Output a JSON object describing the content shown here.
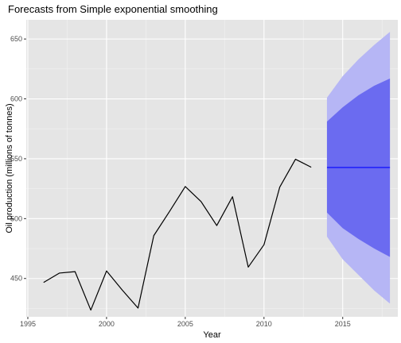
{
  "chart_data": {
    "type": "line",
    "title": "Forecasts from Simple exponential smoothing",
    "xlabel": "Year",
    "ylabel": "Oil production (millions of tonnes)",
    "xlim": [
      1994.9,
      2018.5
    ],
    "ylim": [
      418,
      666
    ],
    "x_ticks": [
      1995,
      2000,
      2005,
      2010,
      2015
    ],
    "y_ticks": [
      450,
      500,
      550,
      600,
      650
    ],
    "x_tick_labels": [
      "1995",
      "2000",
      "2005",
      "2010",
      "2015"
    ],
    "y_tick_labels": [
      "450",
      "500",
      "550",
      "600",
      "650"
    ],
    "grid": true,
    "series": [
      {
        "x": [
          1996,
          1997,
          1998,
          1999,
          2000,
          2001,
          2002,
          2003,
          2004,
          2005,
          2006,
          2007,
          2008,
          2009,
          2010,
          2011,
          2012,
          2013
        ],
        "values": [
          446.7,
          454.5,
          455.7,
          423.6,
          456.3,
          440.3,
          425.3,
          485.8,
          506.0,
          526.8,
          514.3,
          494.2,
          518.3,
          459.5,
          478.2,
          526.3,
          549.6,
          542.9
        ]
      },
      {
        "x": [
          2014,
          2015,
          2016,
          2017,
          2018
        ],
        "values": [
          542.7,
          542.7,
          542.7,
          542.7,
          542.7
        ]
      }
    ],
    "intervals": [
      {
        "level": "95%",
        "x": [
          2014,
          2015,
          2016,
          2017,
          2018
        ],
        "lower": [
          485,
          466,
          453,
          440,
          429
        ],
        "upper": [
          601,
          619,
          633,
          645,
          656
        ]
      },
      {
        "level": "80%",
        "x": [
          2014,
          2015,
          2016,
          2017,
          2018
        ],
        "lower": [
          505,
          492,
          483,
          475,
          468
        ],
        "upper": [
          581,
          593,
          603,
          611,
          617
        ]
      }
    ],
    "colors": {
      "panel": "#e5e5e5",
      "grid_major": "#ffffff",
      "history_line": "#000000",
      "forecast_line": "#0000ff",
      "band_95": "#b6b6f5",
      "band_80": "#6b6bf0"
    }
  }
}
